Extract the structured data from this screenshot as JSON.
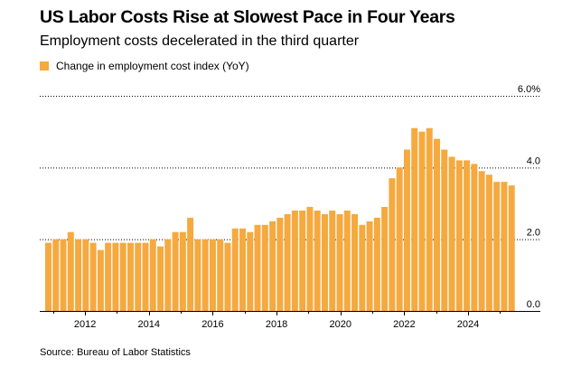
{
  "header": {
    "title": "US Labor Costs Rise at Slowest Pace in Four Years",
    "subtitle": "Employment costs decelerated in the third quarter"
  },
  "source": "Source: Bureau of Labor Statistics",
  "colors": {
    "bar": "#f5a93e"
  },
  "chart_data": {
    "type": "bar",
    "title": "US Labor Costs Rise at Slowest Pace in Four Years",
    "subtitle": "Employment costs decelerated in the third quarter",
    "legend": [
      "Change in employment cost index (YoY)"
    ],
    "legend_position": "top-left",
    "xlabel": "",
    "ylabel": "",
    "ylim": [
      0,
      6
    ],
    "y_ticks": [
      0,
      2,
      4,
      6
    ],
    "y_tick_labels": [
      "0.0",
      "2.0",
      "4.0",
      "6.0%"
    ],
    "grid": true,
    "x_tick_labels": [
      "2012",
      "2014",
      "2016",
      "2018",
      "2020",
      "2022",
      "2024"
    ],
    "x_tick_years": [
      2012,
      2014,
      2016,
      2018,
      2020,
      2022,
      2024
    ],
    "start_year": 2010.75,
    "end_year": 2025.5,
    "series": [
      {
        "name": "Change in employment cost index (YoY)",
        "values": [
          1.9,
          2.0,
          2.0,
          2.2,
          2.0,
          2.0,
          1.9,
          1.7,
          1.9,
          1.9,
          1.9,
          1.9,
          1.9,
          1.9,
          2.0,
          1.8,
          2.0,
          2.2,
          2.2,
          2.6,
          2.0,
          2.0,
          2.0,
          2.0,
          1.9,
          2.3,
          2.3,
          2.2,
          2.4,
          2.4,
          2.5,
          2.6,
          2.7,
          2.8,
          2.8,
          2.9,
          2.8,
          2.7,
          2.8,
          2.7,
          2.8,
          2.7,
          2.4,
          2.5,
          2.6,
          2.9,
          3.7,
          4.0,
          4.5,
          5.1,
          5.0,
          5.1,
          4.8,
          4.5,
          4.3,
          4.2,
          4.2,
          4.1,
          3.9,
          3.8,
          3.6,
          3.6,
          3.5
        ]
      }
    ]
  }
}
